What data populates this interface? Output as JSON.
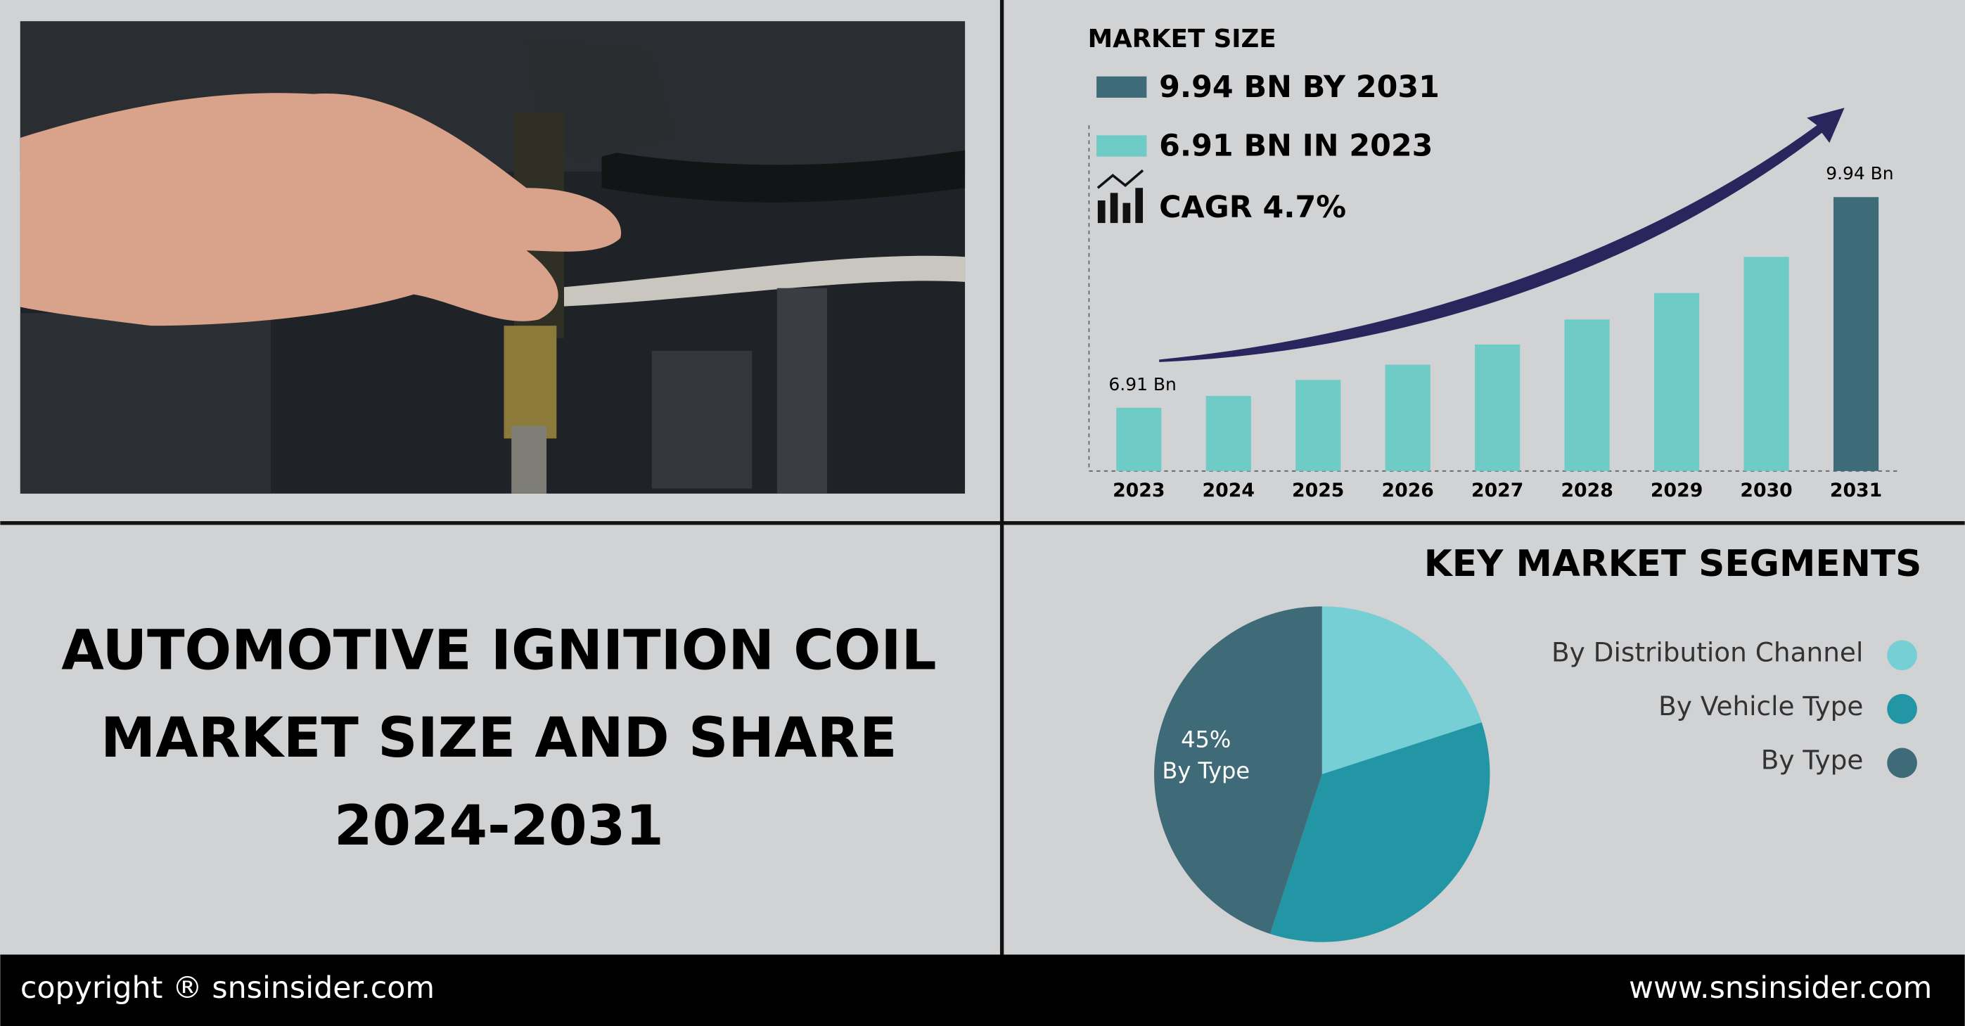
{
  "header": {
    "title_lines": [
      "AUTOMOTIVE IGNITION COIL",
      "MARKET SIZE AND SHARE",
      "2024-2031"
    ]
  },
  "chart_data": [
    {
      "type": "bar",
      "title": "MARKET SIZE",
      "summary": [
        "9.94 BN BY 2031",
        "6.91 BN IN 2023",
        "CAGR 4.7%"
      ],
      "categories": [
        "2023",
        "2024",
        "2025",
        "2026",
        "2027",
        "2028",
        "2029",
        "2030",
        "2031"
      ],
      "values": [
        6.91,
        7.08,
        7.31,
        7.53,
        7.82,
        8.18,
        8.56,
        9.08,
        9.94
      ],
      "value_labels": [
        "6.91 Bn",
        null,
        null,
        null,
        null,
        null,
        null,
        null,
        "9.94 Bn"
      ],
      "colors": [
        "#6ecbc6",
        "#6ecbc6",
        "#6ecbc6",
        "#6ecbc6",
        "#6ecbc6",
        "#6ecbc6",
        "#6ecbc6",
        "#6ecbc6",
        "#3d6b78"
      ],
      "ylim": [
        6,
        10
      ]
    },
    {
      "type": "pie",
      "title": "KEY MARKET SEGMENTS",
      "categories": [
        "By Distribution Channel",
        "By Vehicle Type",
        "By Type"
      ],
      "values": [
        20,
        35,
        45
      ],
      "value_labels": [
        null,
        null,
        "45%"
      ],
      "colors": [
        "#76cfd4",
        "#2296a5",
        "#3f6b78"
      ]
    }
  ],
  "footer": {
    "left": "copyright ® snsinsider.com",
    "right": "www.snsinsider.com"
  }
}
